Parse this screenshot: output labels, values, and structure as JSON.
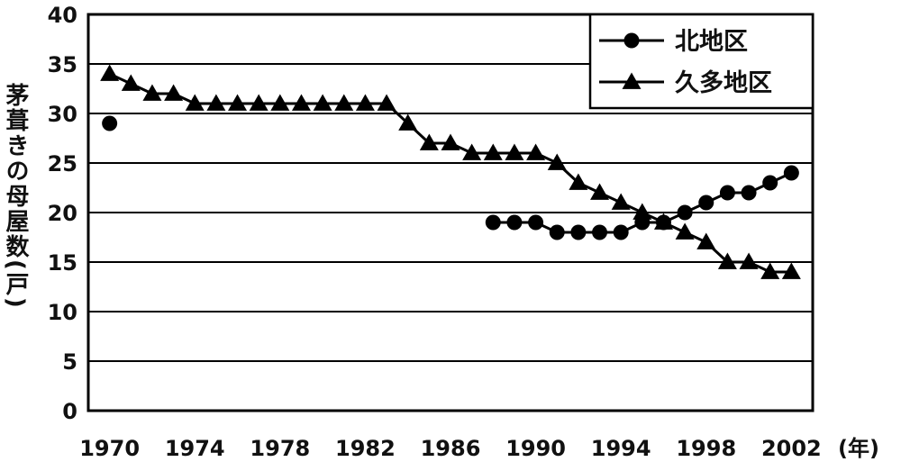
{
  "chart_data": {
    "type": "line",
    "title": "",
    "xlabel": "(年)",
    "ylabel": "茅葺きの母屋数(戸)",
    "xlim": [
      1969,
      2003
    ],
    "ylim": [
      0,
      40
    ],
    "x_ticks": [
      1970,
      1974,
      1978,
      1982,
      1986,
      1990,
      1994,
      1998,
      2002
    ],
    "y_ticks": [
      0,
      5,
      10,
      15,
      20,
      25,
      30,
      35,
      40
    ],
    "grid": "horizontal",
    "legend_position": "top-right",
    "series": [
      {
        "name": "北地区",
        "marker": "circle",
        "color": "#000000",
        "points": [
          [
            1970,
            29
          ],
          [
            1988,
            19
          ],
          [
            1989,
            19
          ],
          [
            1990,
            19
          ],
          [
            1991,
            18
          ],
          [
            1992,
            18
          ],
          [
            1993,
            18
          ],
          [
            1994,
            18
          ],
          [
            1995,
            19
          ],
          [
            1996,
            19
          ],
          [
            1997,
            20
          ],
          [
            1998,
            21
          ],
          [
            1999,
            22
          ],
          [
            2000,
            22
          ],
          [
            2001,
            23
          ],
          [
            2002,
            24
          ]
        ],
        "segments": [
          [
            0,
            0
          ],
          [
            1,
            15
          ]
        ]
      },
      {
        "name": "久多地区",
        "marker": "triangle",
        "color": "#000000",
        "points": [
          [
            1970,
            34
          ],
          [
            1971,
            33
          ],
          [
            1972,
            32
          ],
          [
            1973,
            32
          ],
          [
            1974,
            31
          ],
          [
            1975,
            31
          ],
          [
            1976,
            31
          ],
          [
            1977,
            31
          ],
          [
            1978,
            31
          ],
          [
            1979,
            31
          ],
          [
            1980,
            31
          ],
          [
            1981,
            31
          ],
          [
            1982,
            31
          ],
          [
            1983,
            31
          ],
          [
            1984,
            29
          ],
          [
            1985,
            27
          ],
          [
            1986,
            27
          ],
          [
            1987,
            26
          ],
          [
            1988,
            26
          ],
          [
            1989,
            26
          ],
          [
            1990,
            26
          ],
          [
            1991,
            25
          ],
          [
            1992,
            23
          ],
          [
            1993,
            22
          ],
          [
            1994,
            21
          ],
          [
            1995,
            20
          ],
          [
            1996,
            19
          ],
          [
            1997,
            18
          ],
          [
            1998,
            17
          ],
          [
            1999,
            15
          ],
          [
            2000,
            15
          ],
          [
            2001,
            14
          ],
          [
            2002,
            14
          ]
        ],
        "segments": [
          [
            0,
            32
          ]
        ]
      }
    ]
  }
}
